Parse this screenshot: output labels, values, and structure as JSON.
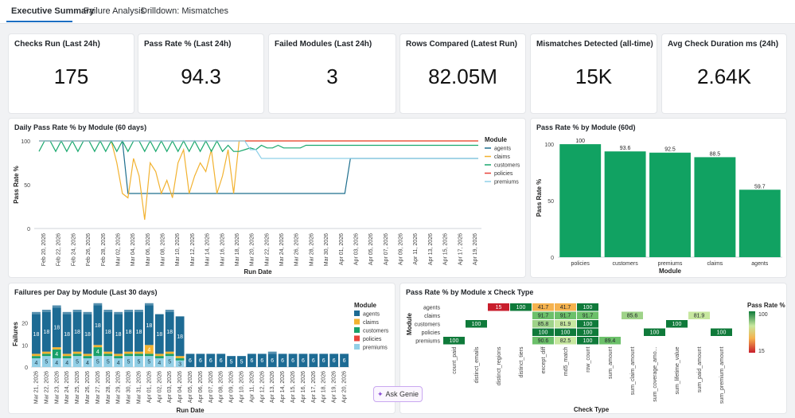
{
  "tabs": [
    {
      "label": "Executive Summary",
      "active": true
    },
    {
      "label": "Failure Analysis",
      "active": false
    },
    {
      "label": "Drilldown: Mismatches",
      "active": false
    }
  ],
  "kpis": [
    {
      "title": "Checks Run (Last 24h)",
      "value": "175"
    },
    {
      "title": "Pass Rate % (Last 24h)",
      "value": "94.3"
    },
    {
      "title": "Failed Modules (Last 24h)",
      "value": "3"
    },
    {
      "title": "Rows Compared (Latest Run)",
      "value": "82.05M"
    },
    {
      "title": "Mismatches Detected (all-time)",
      "value": "15K"
    },
    {
      "title": "Avg Check Duration ms (24h)",
      "value": "2.64K"
    }
  ],
  "colors": {
    "agents": "#1e6f8e",
    "claims": "#f2b230",
    "customers": "#1aa86e",
    "policies": "#e8433a",
    "premiums": "#8fd0e8",
    "bar_green": "#11a262",
    "stack_agents": "#1d6b94",
    "stack_customers": "#19a06a",
    "stack_premiums": "#92cfe6"
  },
  "genie": {
    "label": "Ask Genie",
    "icon": "sparkle-chat-icon"
  },
  "chart_data": [
    {
      "type": "line",
      "title": "Daily Pass Rate % by Module (60 days)",
      "xlabel": "Run Date",
      "ylabel": "Pass Rate %",
      "ylim": [
        0,
        100
      ],
      "yticks": [
        0,
        50,
        100
      ],
      "xtick_labels": [
        "Feb 20, 2026",
        "Feb 22, 2026",
        "Feb 24, 2026",
        "Feb 26, 2026",
        "Feb 28, 2026",
        "Mar 02, 2026",
        "Mar 04, 2026",
        "Mar 06, 2026",
        "Mar 08, 2026",
        "Mar 10, 2026",
        "Mar 12, 2026",
        "Mar 14, 2026",
        "Mar 16, 2026",
        "Mar 18, 2026",
        "Mar 20, 2026",
        "Mar 22, 2026",
        "Mar 24, 2026",
        "Mar 26, 2026",
        "Mar 28, 2026",
        "Mar 30, 2026",
        "Apr 01, 2026",
        "Apr 03, 2026",
        "Apr 05, 2026",
        "Apr 07, 2026",
        "Apr 09, 2026",
        "Apr 11, 2026",
        "Apr 13, 2026",
        "Apr 15, 2026",
        "Apr 17, 2026",
        "Apr 19, 2026"
      ],
      "legend_title": "Module",
      "legend_position": "right",
      "series": [
        {
          "name": "agents",
          "values": [
            100,
            100,
            100,
            100,
            100,
            100,
            100,
            100,
            100,
            100,
            100,
            100,
            100,
            100,
            100,
            100,
            40,
            40,
            40,
            40,
            40,
            40,
            40,
            40,
            40,
            40,
            40,
            40,
            40,
            40,
            40,
            40,
            40,
            40,
            40,
            40,
            40,
            40,
            40,
            40,
            40,
            40,
            40,
            40,
            40,
            40,
            40,
            40,
            40,
            40,
            40,
            40,
            40,
            40,
            40,
            40,
            80,
            80,
            80,
            80,
            80,
            80,
            80,
            80,
            80,
            80,
            80,
            80,
            80,
            80,
            80,
            80,
            80,
            80,
            80,
            80,
            80,
            80,
            80,
            80
          ]
        },
        {
          "name": "claims",
          "values": [
            100,
            100,
            100,
            100,
            100,
            100,
            100,
            100,
            100,
            100,
            100,
            100,
            100,
            100,
            75,
            40,
            35,
            80,
            60,
            10,
            75,
            65,
            40,
            55,
            35,
            75,
            90,
            40,
            60,
            75,
            65,
            90,
            40,
            60,
            90,
            40,
            100,
            100,
            100,
            100,
            100,
            100,
            100,
            100,
            100,
            100,
            100,
            100,
            100,
            100,
            100,
            100,
            100,
            100,
            100,
            100,
            100,
            100,
            100,
            100,
            100,
            100,
            100,
            100,
            100,
            100,
            100,
            100,
            100,
            100,
            100,
            100,
            100,
            100,
            100,
            100,
            100,
            100,
            100,
            100
          ]
        },
        {
          "name": "customers",
          "values": [
            88,
            100,
            100,
            88,
            100,
            88,
            100,
            88,
            100,
            100,
            88,
            100,
            88,
            100,
            88,
            100,
            88,
            100,
            100,
            88,
            100,
            88,
            100,
            88,
            100,
            88,
            100,
            88,
            100,
            88,
            100,
            88,
            100,
            88,
            95,
            88,
            88,
            90,
            92,
            90,
            95,
            92,
            92,
            95,
            92,
            92,
            92,
            92,
            95,
            95,
            95,
            95,
            95,
            95,
            95,
            95,
            95,
            95,
            95,
            95,
            95,
            95,
            95,
            95,
            95,
            95,
            95,
            95,
            95,
            95,
            95,
            95,
            95,
            95,
            95,
            95,
            95,
            95,
            95,
            95
          ]
        },
        {
          "name": "policies",
          "values": [
            100,
            100,
            100,
            100,
            100,
            100,
            100,
            100,
            100,
            100,
            100,
            100,
            100,
            100,
            100,
            100,
            100,
            100,
            100,
            100,
            100,
            100,
            100,
            100,
            100,
            100,
            100,
            100,
            100,
            100,
            100,
            100,
            100,
            100,
            100,
            100,
            100,
            100,
            100,
            100,
            100,
            100,
            100,
            100,
            100,
            100,
            100,
            100,
            100,
            100,
            100,
            100,
            100,
            100,
            100,
            100,
            100,
            100,
            100,
            100,
            100,
            100,
            100,
            100,
            100,
            100,
            100,
            100,
            100,
            100,
            100,
            100,
            100,
            100,
            100,
            100,
            100,
            100,
            100,
            100
          ]
        },
        {
          "name": "premiums",
          "values": [
            100,
            100,
            100,
            100,
            100,
            100,
            100,
            100,
            100,
            100,
            100,
            100,
            100,
            100,
            100,
            100,
            100,
            100,
            100,
            100,
            100,
            100,
            100,
            100,
            100,
            100,
            100,
            100,
            100,
            100,
            100,
            100,
            100,
            100,
            100,
            100,
            100,
            100,
            90,
            90,
            80,
            80,
            80,
            80,
            80,
            80,
            80,
            80,
            80,
            80,
            80,
            80,
            80,
            80,
            80,
            80,
            80,
            80,
            80,
            80,
            80,
            80,
            80,
            80,
            80,
            80,
            80,
            80,
            80,
            80,
            80,
            80,
            80,
            80,
            80,
            80,
            80,
            80,
            80,
            80
          ]
        }
      ]
    },
    {
      "type": "bar",
      "title": "Pass Rate % by Module (60d)",
      "xlabel": "Module",
      "ylabel": "Pass Rate %",
      "ylim": [
        0,
        105
      ],
      "yticks": [
        0,
        50,
        100
      ],
      "categories": [
        "policies",
        "customers",
        "premiums",
        "claims",
        "agents"
      ],
      "values": [
        100,
        93.6,
        92.5,
        88.5,
        59.7
      ],
      "value_labels": [
        "100",
        "93.6",
        "92.5",
        "88.5",
        "59.7"
      ]
    },
    {
      "type": "bar",
      "stacked": true,
      "title": "Failures per Day by Module (Last 30 days)",
      "xlabel": "Run Date",
      "ylabel": "Failures",
      "ylim": [
        0,
        30
      ],
      "yticks": [
        0,
        10,
        20
      ],
      "legend_title": "Module",
      "legend_position": "right",
      "legend": [
        "agents",
        "claims",
        "customers",
        "policies",
        "premiums"
      ],
      "xtick_labels": [
        "Mar 21, 2026",
        "Mar 22, 2026",
        "Mar 23, 2026",
        "Mar 24, 2026",
        "Mar 25, 2026",
        "Mar 26, 2026",
        "Mar 27, 2026",
        "Mar 28, 2026",
        "Mar 29, 2026",
        "Mar 30, 2026",
        "Mar 31, 2026",
        "Apr 01, 2026",
        "Apr 02, 2026",
        "Apr 03, 2026",
        "Apr 04, 2026",
        "Apr 05, 2026",
        "Apr 06, 2026",
        "Apr 07, 2026",
        "Apr 08, 2026",
        "Apr 09, 2026",
        "Apr 10, 2026",
        "Apr 11, 2026",
        "Apr 12, 2026",
        "Apr 13, 2026",
        "Apr 14, 2026",
        "Apr 15, 2026",
        "Apr 16, 2026",
        "Apr 17, 2026",
        "Apr 18, 2026",
        "Apr 19, 2026",
        "Apr 20, 2026"
      ],
      "series": [
        {
          "name": "premiums",
          "values": [
            4,
            5,
            4,
            4,
            5,
            4,
            5,
            5,
            4,
            5,
            5,
            5,
            4,
            5,
            3,
            0,
            0,
            0,
            0,
            0,
            0,
            0,
            0,
            0,
            0,
            0,
            0,
            0,
            0,
            0,
            0
          ]
        },
        {
          "name": "customers",
          "values": [
            1,
            1,
            4,
            1,
            1,
            1,
            4,
            1,
            1,
            1,
            1,
            1,
            1,
            1,
            1,
            0,
            0,
            0,
            0,
            0,
            0,
            0,
            0,
            0,
            0,
            0,
            0,
            0,
            0,
            0,
            0
          ]
        },
        {
          "name": "claims",
          "values": [
            1,
            1,
            1,
            1,
            1,
            1,
            1,
            1,
            1,
            1,
            1,
            4,
            1,
            1,
            1,
            0,
            0,
            0,
            0,
            0,
            0,
            0,
            0,
            0,
            0,
            0,
            0,
            0,
            0,
            0,
            0
          ]
        },
        {
          "name": "agents",
          "values": [
            18,
            18,
            18,
            18,
            18,
            18,
            18,
            18,
            18,
            18,
            18,
            18,
            18,
            18,
            18,
            6,
            6,
            6,
            6,
            5,
            5,
            6,
            6,
            6,
            6,
            6,
            6,
            6,
            6,
            6,
            6
          ]
        }
      ],
      "segment_labels": {
        "premiums": [
          "4",
          "5",
          "4",
          "4",
          "5",
          "4",
          "5",
          "5",
          "4",
          "5",
          "5",
          "5",
          "4",
          "5",
          "3",
          "",
          "",
          "",
          "",
          "",
          "",
          "",
          "",
          "",
          "",
          "",
          "",
          "",
          "",
          "",
          ""
        ],
        "customers": [
          "",
          "",
          "4",
          "",
          "",
          "",
          "4",
          "",
          "",
          "",
          "",
          "",
          "",
          "",
          "",
          "",
          "",
          "",
          "",
          "",
          "",
          "",
          "",
          "",
          "",
          "",
          "",
          "",
          "",
          "",
          ""
        ],
        "claims": [
          "",
          "",
          "",
          "",
          "",
          "",
          "",
          "",
          "",
          "",
          "",
          "4",
          "",
          "",
          "",
          "",
          "",
          "",
          "",
          "",
          "",
          "",
          "",
          "",
          "",
          "",
          "",
          "",
          "",
          "",
          ""
        ],
        "agents": [
          "18",
          "18",
          "18",
          "18",
          "18",
          "18",
          "18",
          "18",
          "18",
          "18",
          "18",
          "18",
          "18",
          "18",
          "18",
          "6",
          "6",
          "6",
          "6",
          "5",
          "5",
          "6",
          "6",
          "6",
          "6",
          "6",
          "6",
          "6",
          "6",
          "6",
          "6"
        ]
      },
      "extra_top": [
        1,
        1,
        1,
        1,
        1,
        1,
        1,
        1,
        1,
        1,
        1,
        1,
        0,
        1,
        0,
        0,
        0,
        0,
        0,
        0,
        0,
        0,
        0,
        1,
        0,
        0,
        0,
        0,
        0,
        0,
        0
      ]
    },
    {
      "type": "heatmap",
      "title": "Pass Rate % by Module x Check Type",
      "xlabel": "Check Type",
      "ylabel": "Module",
      "legend_title": "Pass Rate %",
      "colorbar_ticks": [
        "100",
        "15"
      ],
      "rows": [
        "agents",
        "claims",
        "customers",
        "policies",
        "premiums"
      ],
      "columns": [
        "count_paid",
        "distinct_emails",
        "distinct_regions",
        "distinct_tiers",
        "except_diff",
        "md5_match",
        "row_count",
        "sum_amount",
        "sum_claim_amount",
        "sum_coverage_amo...",
        "sum_lifetime_value",
        "sum_paid_amount",
        "sum_premium_amount"
      ],
      "cells": [
        {
          "row": "agents",
          "col": "distinct_regions",
          "value": 15,
          "label": "15"
        },
        {
          "row": "agents",
          "col": "distinct_tiers",
          "value": 100,
          "label": "100"
        },
        {
          "row": "agents",
          "col": "except_diff",
          "value": 41.7,
          "label": "41.7"
        },
        {
          "row": "agents",
          "col": "md5_match",
          "value": 41.7,
          "label": "41.7"
        },
        {
          "row": "agents",
          "col": "row_count",
          "value": 100,
          "label": "100"
        },
        {
          "row": "claims",
          "col": "except_diff",
          "value": 91.7,
          "label": "91.7"
        },
        {
          "row": "claims",
          "col": "md5_match",
          "value": 91.7,
          "label": "91.7"
        },
        {
          "row": "claims",
          "col": "row_count",
          "value": 91.7,
          "label": "91.7"
        },
        {
          "row": "claims",
          "col": "sum_claim_amount",
          "value": 85.6,
          "label": "85.6"
        },
        {
          "row": "claims",
          "col": "sum_paid_amount",
          "value": 81.9,
          "label": "81.9"
        },
        {
          "row": "customers",
          "col": "distinct_emails",
          "value": 100,
          "label": "100"
        },
        {
          "row": "customers",
          "col": "except_diff",
          "value": 85.8,
          "label": "85.8"
        },
        {
          "row": "customers",
          "col": "md5_match",
          "value": 81.9,
          "label": "81.9"
        },
        {
          "row": "customers",
          "col": "row_count",
          "value": 100,
          "label": "100"
        },
        {
          "row": "customers",
          "col": "sum_lifetime_value",
          "value": 100,
          "label": "100"
        },
        {
          "row": "policies",
          "col": "except_diff",
          "value": 100,
          "label": "100"
        },
        {
          "row": "policies",
          "col": "md5_match",
          "value": 100,
          "label": "100"
        },
        {
          "row": "policies",
          "col": "row_count",
          "value": 100,
          "label": "100"
        },
        {
          "row": "policies",
          "col": "sum_coverage_amo...",
          "value": 100,
          "label": "100"
        },
        {
          "row": "policies",
          "col": "sum_premium_amount",
          "value": 100,
          "label": "100"
        },
        {
          "row": "premiums",
          "col": "count_paid",
          "value": 100,
          "label": "100"
        },
        {
          "row": "premiums",
          "col": "except_diff",
          "value": 90.6,
          "label": "90.6"
        },
        {
          "row": "premiums",
          "col": "md5_match",
          "value": 82.5,
          "label": "82.5"
        },
        {
          "row": "premiums",
          "col": "row_count",
          "value": 100,
          "label": "100"
        },
        {
          "row": "premiums",
          "col": "sum_amount",
          "value": 89.4,
          "label": "89.4"
        }
      ]
    }
  ]
}
